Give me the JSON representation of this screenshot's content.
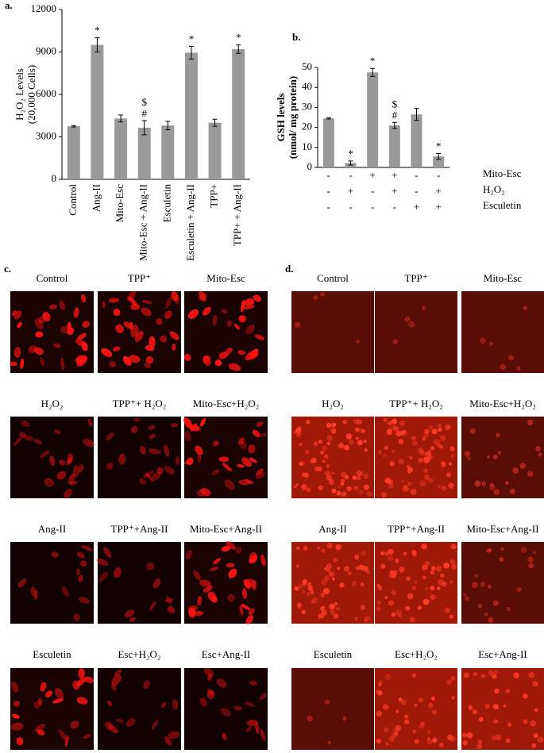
{
  "chart_data": [
    {
      "type": "bar",
      "panel_label": "a.",
      "ylabel": [
        "H₂O₂ Levels",
        "(20,000 Cells)"
      ],
      "categories": [
        "Control",
        "Ang-II",
        "Mito-Esc",
        "Mito-Esc + Ang-II",
        "Esculetin",
        "Esculetin + Ang-II",
        "TPP+",
        "TPP+ + Ang-II"
      ],
      "series": [
        {
          "color": "#999999",
          "values": [
            3750,
            9500,
            4300,
            3650,
            3800,
            8950,
            4000,
            9200
          ],
          "errors": [
            50,
            500,
            250,
            500,
            300,
            450,
            250,
            300
          ]
        }
      ],
      "annotations": [
        [],
        [
          "*"
        ],
        [],
        [
          "$",
          "#"
        ],
        [],
        [
          "*"
        ],
        [],
        [
          "*"
        ]
      ],
      "ylim": [
        0,
        12000
      ],
      "yticks": [
        0,
        3000,
        6000,
        9000,
        12000
      ]
    },
    {
      "type": "bar",
      "panel_label": "b.",
      "ylabel": [
        "GSH levels",
        "(nmol/ mg protein)"
      ],
      "categories": [
        null,
        null,
        null,
        null,
        null,
        null
      ],
      "series": [
        {
          "color": "#999999",
          "values": [
            24.5,
            2.2,
            47.5,
            21,
            26.5,
            5.5
          ],
          "errors": [
            0.3,
            1,
            2,
            1.5,
            3,
            1.5
          ]
        }
      ],
      "annotations": [
        [],
        [
          "*"
        ],
        [
          "*"
        ],
        [
          "$",
          "#"
        ],
        [],
        [
          "*"
        ]
      ],
      "treatments": [
        {
          "name": "Mito-Esc",
          "signs": [
            "-",
            "-",
            "+",
            "+",
            "-",
            "-"
          ]
        },
        {
          "name": "H₂O₂",
          "signs": [
            "-",
            "+",
            "-",
            "+",
            "-",
            "+"
          ]
        },
        {
          "name": "Esculetin",
          "signs": [
            "-",
            "-",
            "-",
            "-",
            "+",
            "+"
          ]
        }
      ],
      "ylim": [
        0,
        50
      ],
      "yticks": [
        0,
        10,
        20,
        30,
        40,
        50
      ]
    }
  ],
  "micrograph_panels": [
    {
      "label": "c.",
      "captions": [
        [
          "Control",
          "TPP⁺",
          "Mito-Esc"
        ],
        [
          "H₂O₂",
          "TPP⁺+ H₂O₂",
          "Mito-Esc+H₂O₂"
        ],
        [
          "Ang-II",
          "TPP⁺+Ang-II",
          "Mito-Esc+Ang-II"
        ],
        [
          "Esculetin",
          "Esc+H₂O₂",
          "Esc+Ang-II"
        ]
      ]
    },
    {
      "label": "d.",
      "captions": [
        [
          "Control",
          "TPP⁺",
          "Mito-Esc"
        ],
        [
          "H₂O₂",
          "TPP⁺+ H₂O₂",
          "Mito-Esc+H₂O₂"
        ],
        [
          "Ang-II",
          "TPP⁺+Ang-II",
          "Mito-Esc+Ang-II"
        ],
        [
          "Esculetin",
          "Esc+H₂O₂",
          "Esc+Ang-II"
        ]
      ]
    }
  ]
}
